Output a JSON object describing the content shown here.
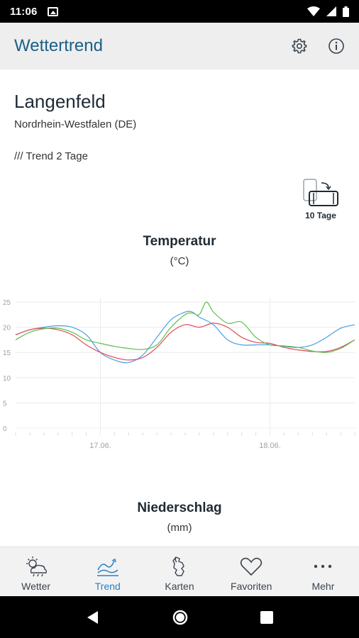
{
  "status_bar": {
    "time": "11:06"
  },
  "app_bar": {
    "title": "Wettertrend",
    "settings_icon": "gear-icon",
    "info_icon": "info-icon"
  },
  "location": {
    "city": "Langenfeld",
    "region": "Nordrhein-Westfalen (DE)"
  },
  "trend_label": "/// Trend 2 Tage",
  "days_toggle": {
    "label": "10 Tage"
  },
  "charts": {
    "temperature": {
      "title": "Temperatur",
      "unit": "(°C)"
    },
    "precipitation": {
      "title": "Niederschlag",
      "unit": "(mm)"
    }
  },
  "colors": {
    "series_blue": "#4a9fe0",
    "series_red": "#e04a5a",
    "series_green": "#5cbf4a",
    "accent": "#1b5e86",
    "nav_active": "#2a7fc1"
  },
  "chart_data": {
    "type": "line",
    "yticks": [
      0,
      5,
      10,
      15,
      20,
      25
    ],
    "ylim": [
      0,
      25
    ],
    "xlim": [
      0,
      48
    ],
    "xtick_labels": [
      {
        "x": 12,
        "label": "17.06."
      },
      {
        "x": 36,
        "label": "18.06."
      }
    ],
    "grid": true,
    "series": [
      {
        "color": "#4a9fe0",
        "x": [
          0,
          2,
          4,
          6,
          8,
          10,
          12,
          14,
          16,
          18,
          20,
          22,
          24,
          25,
          26,
          28,
          30,
          32,
          34,
          36,
          38,
          40,
          42,
          44,
          46,
          48
        ],
        "y": [
          18.5,
          19.5,
          20,
          20.3,
          20,
          18.5,
          15,
          13.5,
          13,
          14.5,
          18,
          21.5,
          23,
          23,
          22,
          20.5,
          17.5,
          16.5,
          16.5,
          16.5,
          16.2,
          16,
          16.5,
          18,
          19.8,
          20.5
        ]
      },
      {
        "color": "#e04a5a",
        "x": [
          0,
          2,
          4,
          6,
          8,
          10,
          12,
          14,
          16,
          18,
          20,
          22,
          24,
          26,
          28,
          30,
          32,
          34,
          36,
          38,
          40,
          42,
          44,
          46,
          48
        ],
        "y": [
          18.5,
          19.5,
          19.8,
          19.5,
          18.5,
          16.5,
          15,
          14,
          13.5,
          14,
          16,
          19,
          20.5,
          20,
          20.8,
          20,
          18,
          17,
          16.8,
          16,
          15.5,
          15.2,
          15.2,
          16,
          17.5
        ]
      },
      {
        "color": "#5cbf4a",
        "x": [
          0,
          2,
          4,
          6,
          8,
          10,
          12,
          14,
          16,
          18,
          20,
          22,
          24,
          25,
          26,
          27,
          28,
          30,
          32,
          34,
          36,
          38,
          40,
          42,
          44,
          46,
          48
        ],
        "y": [
          17.5,
          19,
          19.7,
          19.8,
          19,
          17.5,
          16.8,
          16.2,
          15.8,
          15.6,
          16.5,
          20,
          22.5,
          22.8,
          22.5,
          25,
          23,
          20.8,
          21,
          18,
          16.5,
          16.3,
          16,
          15.3,
          15,
          15.8,
          17.5
        ]
      }
    ]
  },
  "bottom_nav": {
    "items": [
      {
        "label": "Wetter",
        "icon": "weather-icon"
      },
      {
        "label": "Trend",
        "icon": "trend-icon"
      },
      {
        "label": "Karten",
        "icon": "maps-icon"
      },
      {
        "label": "Favoriten",
        "icon": "heart-icon"
      },
      {
        "label": "Mehr",
        "icon": "more-icon"
      }
    ]
  }
}
